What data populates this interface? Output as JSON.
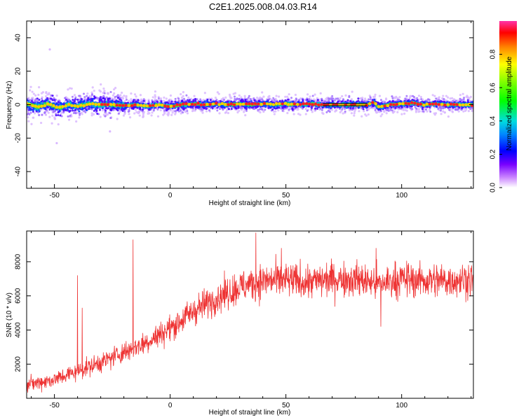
{
  "title": "C2E1.2025.008.04.03.R14",
  "chart_data": [
    {
      "type": "heatmap",
      "xlabel": "Height of straight line (km)",
      "ylabel": "Frequency (Hz)",
      "xlim": [
        -62,
        131
      ],
      "ylim": [
        -50,
        50
      ],
      "xticks": [
        -50,
        0,
        50,
        100
      ],
      "yticks": [
        -40,
        -20,
        0,
        20,
        40
      ],
      "colorbar": {
        "label": "Normalized spectral amplitude",
        "range": [
          0,
          1
        ],
        "ticks": [
          "0.0",
          "0.2",
          "0.4",
          "0.6",
          "0.8"
        ]
      },
      "ridge": {
        "x": [
          -62,
          -57,
          -53,
          -48,
          -44,
          -40,
          -35,
          -30,
          -25,
          -20,
          -15,
          -10,
          -5,
          0,
          5,
          10,
          15,
          20,
          25,
          30,
          35,
          40,
          45,
          50,
          55,
          60,
          65,
          70,
          75,
          80,
          85,
          88,
          90,
          92,
          95,
          100,
          105,
          110,
          115,
          120,
          125,
          131
        ],
        "y": [
          0.5,
          -1.5,
          0.5,
          -2,
          0,
          -1,
          0.5,
          0,
          0,
          -0.5,
          0,
          -1,
          0,
          -1,
          0,
          0.5,
          0,
          0.5,
          0,
          0.5,
          0,
          0.5,
          0,
          0.5,
          0,
          0.5,
          0,
          0,
          0,
          0,
          0,
          1.5,
          -1.5,
          -1,
          0,
          0.5,
          1,
          0,
          0.5,
          0,
          0,
          0
        ]
      },
      "marker_line": {
        "y": 0,
        "x": [
          66,
          85
        ]
      },
      "outliers": [
        {
          "x": -52,
          "y": 33
        },
        {
          "x": -49,
          "y": -23
        },
        {
          "x": -26,
          "y": -16
        }
      ]
    },
    {
      "type": "line",
      "xlabel": "Height of straight line (km)",
      "ylabel": "SNR (10 * v/v)",
      "xlim": [
        -62,
        131
      ],
      "ylim": [
        0,
        9800
      ],
      "xticks": [
        -50,
        0,
        50,
        100
      ],
      "yticks": [
        2000,
        4000,
        6000,
        8000
      ],
      "color": "#ee3333",
      "trend": {
        "x": [
          -62,
          -50,
          -40,
          -30,
          -20,
          -10,
          0,
          10,
          20,
          30,
          40,
          50,
          60,
          70,
          80,
          90,
          100,
          110,
          120,
          131
        ],
        "y": [
          800,
          1100,
          1600,
          2100,
          2700,
          3300,
          4100,
          5100,
          5900,
          6500,
          6900,
          6900,
          6800,
          7000,
          7000,
          6700,
          7000,
          6900,
          6900,
          7000
        ]
      },
      "spikes": [
        {
          "x": -40,
          "y": 7200
        },
        {
          "x": -38,
          "y": 5300
        },
        {
          "x": -16,
          "y": 9300
        },
        {
          "x": 37,
          "y": 9700
        },
        {
          "x": 48,
          "y": 8800
        },
        {
          "x": 91,
          "y": 4200
        },
        {
          "x": 89,
          "y": 8800
        }
      ]
    }
  ]
}
